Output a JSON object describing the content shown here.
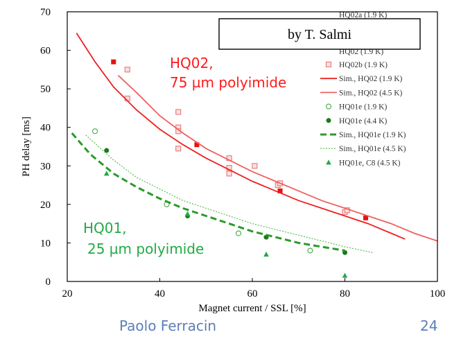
{
  "chart_data": {
    "type": "scatter",
    "xlabel": "Magnet current / SSL [%]",
    "ylabel": "PH delay [ms]",
    "xlim": [
      20,
      100
    ],
    "ylim": [
      0,
      70
    ],
    "xticks": [
      20,
      40,
      60,
      80,
      100
    ],
    "yticks": [
      0,
      10,
      20,
      30,
      40,
      50,
      60,
      70
    ],
    "grid": false,
    "legend_position": "right",
    "annotations": [
      {
        "text": "HQ02,",
        "color": "#ff1a1a"
      },
      {
        "text": "75 µm polyimide",
        "color": "#ff1a1a"
      },
      {
        "text": "HQ01,",
        "color": "#22aa44"
      },
      {
        "text": "25 µm polyimide",
        "color": "#22aa44"
      },
      {
        "text": "by T. Salmi",
        "color": "#000000"
      }
    ],
    "series": [
      {
        "name": "HQ02b (1.9 K)",
        "marker": "square-open",
        "color": "#e88080",
        "points": [
          [
            33,
            55
          ],
          [
            33,
            47.5
          ],
          [
            44,
            44
          ],
          [
            44,
            40
          ],
          [
            44,
            39
          ],
          [
            44,
            34.5
          ],
          [
            55,
            32
          ],
          [
            55,
            29.5
          ],
          [
            55,
            28
          ],
          [
            60.5,
            30
          ],
          [
            65.5,
            25
          ],
          [
            66,
            25.5
          ],
          [
            80,
            18
          ],
          [
            80.5,
            18.5
          ]
        ]
      },
      {
        "name": "",
        "marker": "square-filled",
        "color": "#e81010",
        "points": [
          [
            30,
            57
          ],
          [
            48,
            35.5
          ],
          [
            66,
            23.5
          ],
          [
            84.5,
            16.5
          ]
        ]
      },
      {
        "name": "Sim., HQ02 (1.9 K)",
        "line": "solid",
        "color": "#ee2020",
        "points": [
          [
            22,
            64.5
          ],
          [
            26,
            57
          ],
          [
            30,
            50.5
          ],
          [
            35,
            44.5
          ],
          [
            40,
            39.5
          ],
          [
            45,
            35.5
          ],
          [
            50,
            32
          ],
          [
            55,
            29
          ],
          [
            60,
            26
          ],
          [
            65,
            23.5
          ],
          [
            70,
            21
          ],
          [
            75,
            19
          ],
          [
            80,
            17
          ],
          [
            85,
            15
          ],
          [
            90,
            12.5
          ],
          [
            93,
            11
          ]
        ]
      },
      {
        "name": "Sim., HQ02 (4.5 K)",
        "line": "solid",
        "color": "#f06060",
        "points": [
          [
            31,
            53.5
          ],
          [
            35,
            49
          ],
          [
            40,
            43
          ],
          [
            45,
            38.5
          ],
          [
            50,
            34.5
          ],
          [
            55,
            31.5
          ],
          [
            60,
            28.5
          ],
          [
            65,
            26
          ],
          [
            70,
            23.5
          ],
          [
            75,
            21
          ],
          [
            80,
            19
          ],
          [
            85,
            17
          ],
          [
            90,
            15
          ],
          [
            95,
            12.5
          ],
          [
            100,
            10.5
          ]
        ]
      },
      {
        "name": "HQ01e (1.9 K)",
        "marker": "circle-open",
        "color": "#44aa44",
        "points": [
          [
            26,
            39
          ],
          [
            41.5,
            20
          ],
          [
            57,
            12.5
          ],
          [
            72.5,
            8
          ]
        ]
      },
      {
        "name": "HQ01e (4.4 K)",
        "marker": "circle-filled",
        "color": "#1a7a1a",
        "points": [
          [
            28.5,
            34
          ],
          [
            46,
            17
          ],
          [
            63,
            11.5
          ],
          [
            80,
            7.5
          ]
        ]
      },
      {
        "name": "Sim., HQ01e (1.9 K)",
        "line": "dashed",
        "color": "#2a9a2a",
        "points": [
          [
            21,
            38.5
          ],
          [
            25,
            33
          ],
          [
            30,
            28
          ],
          [
            35,
            24.5
          ],
          [
            40,
            21.5
          ],
          [
            45,
            19
          ],
          [
            50,
            17
          ],
          [
            55,
            15
          ],
          [
            60,
            13
          ],
          [
            65,
            11.5
          ],
          [
            70,
            10
          ],
          [
            75,
            9
          ],
          [
            80,
            8
          ]
        ]
      },
      {
        "name": "Sim., HQ01e (4.5 K)",
        "line": "dotted",
        "color": "#55bb55",
        "points": [
          [
            24,
            38
          ],
          [
            30,
            31.5
          ],
          [
            35,
            27
          ],
          [
            40,
            24
          ],
          [
            45,
            21
          ],
          [
            50,
            19
          ],
          [
            55,
            17
          ],
          [
            60,
            15
          ],
          [
            65,
            13.5
          ],
          [
            70,
            12
          ],
          [
            75,
            10.5
          ],
          [
            80,
            9
          ],
          [
            86,
            7.5
          ]
        ]
      },
      {
        "name": "HQ01e, C8 (4.5 K)",
        "marker": "triangle-filled",
        "color": "#22aa44",
        "points": [
          [
            28.5,
            28
          ],
          [
            46,
            17.5
          ],
          [
            63,
            7
          ],
          [
            80,
            1.5
          ]
        ]
      }
    ]
  },
  "legend": {
    "header_partial": "HQ02a (1.9 K)",
    "overlapped_partial": "HQ02 (1.9 K)"
  },
  "footer": {
    "author": "Paolo Ferracin",
    "page_number": "24"
  }
}
